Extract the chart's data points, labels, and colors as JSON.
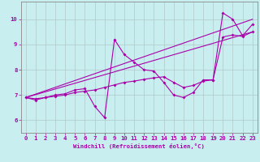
{
  "xlabel": "Windchill (Refroidissement éolien,°C)",
  "bg_color": "#c8eef0",
  "grid_color": "#b0c8c8",
  "line_color": "#aa00aa",
  "xlim": [
    -0.5,
    23.5
  ],
  "ylim": [
    5.5,
    10.7
  ],
  "yticks": [
    6,
    7,
    8,
    9,
    10
  ],
  "xticks": [
    0,
    1,
    2,
    3,
    4,
    5,
    6,
    7,
    8,
    9,
    10,
    11,
    12,
    13,
    14,
    15,
    16,
    17,
    18,
    19,
    20,
    21,
    22,
    23
  ],
  "line0_x": [
    0,
    1,
    2,
    3,
    4,
    5,
    6,
    7,
    8,
    9,
    10,
    11,
    12,
    13,
    14,
    15,
    16,
    17,
    18,
    19,
    20,
    21,
    22,
    23
  ],
  "line0_y": [
    6.9,
    6.8,
    6.9,
    7.0,
    7.05,
    7.2,
    7.25,
    6.55,
    6.1,
    9.2,
    8.6,
    8.3,
    8.0,
    7.95,
    7.5,
    7.0,
    6.9,
    7.1,
    7.6,
    7.6,
    10.25,
    10.0,
    9.35,
    9.8
  ],
  "line1_x": [
    0,
    23
  ],
  "line1_y": [
    6.9,
    10.0
  ],
  "line2_x": [
    0,
    23
  ],
  "line2_y": [
    6.9,
    9.5
  ],
  "line3_x": [
    0,
    1,
    2,
    3,
    4,
    5,
    6,
    7,
    8,
    9,
    10,
    11,
    12,
    13,
    14,
    15,
    16,
    17,
    18,
    19,
    20,
    21,
    22,
    23
  ],
  "line3_y": [
    6.9,
    6.85,
    6.9,
    6.95,
    7.0,
    7.1,
    7.15,
    7.2,
    7.3,
    7.4,
    7.5,
    7.55,
    7.62,
    7.68,
    7.72,
    7.5,
    7.3,
    7.38,
    7.55,
    7.6,
    9.3,
    9.38,
    9.32,
    9.5
  ]
}
